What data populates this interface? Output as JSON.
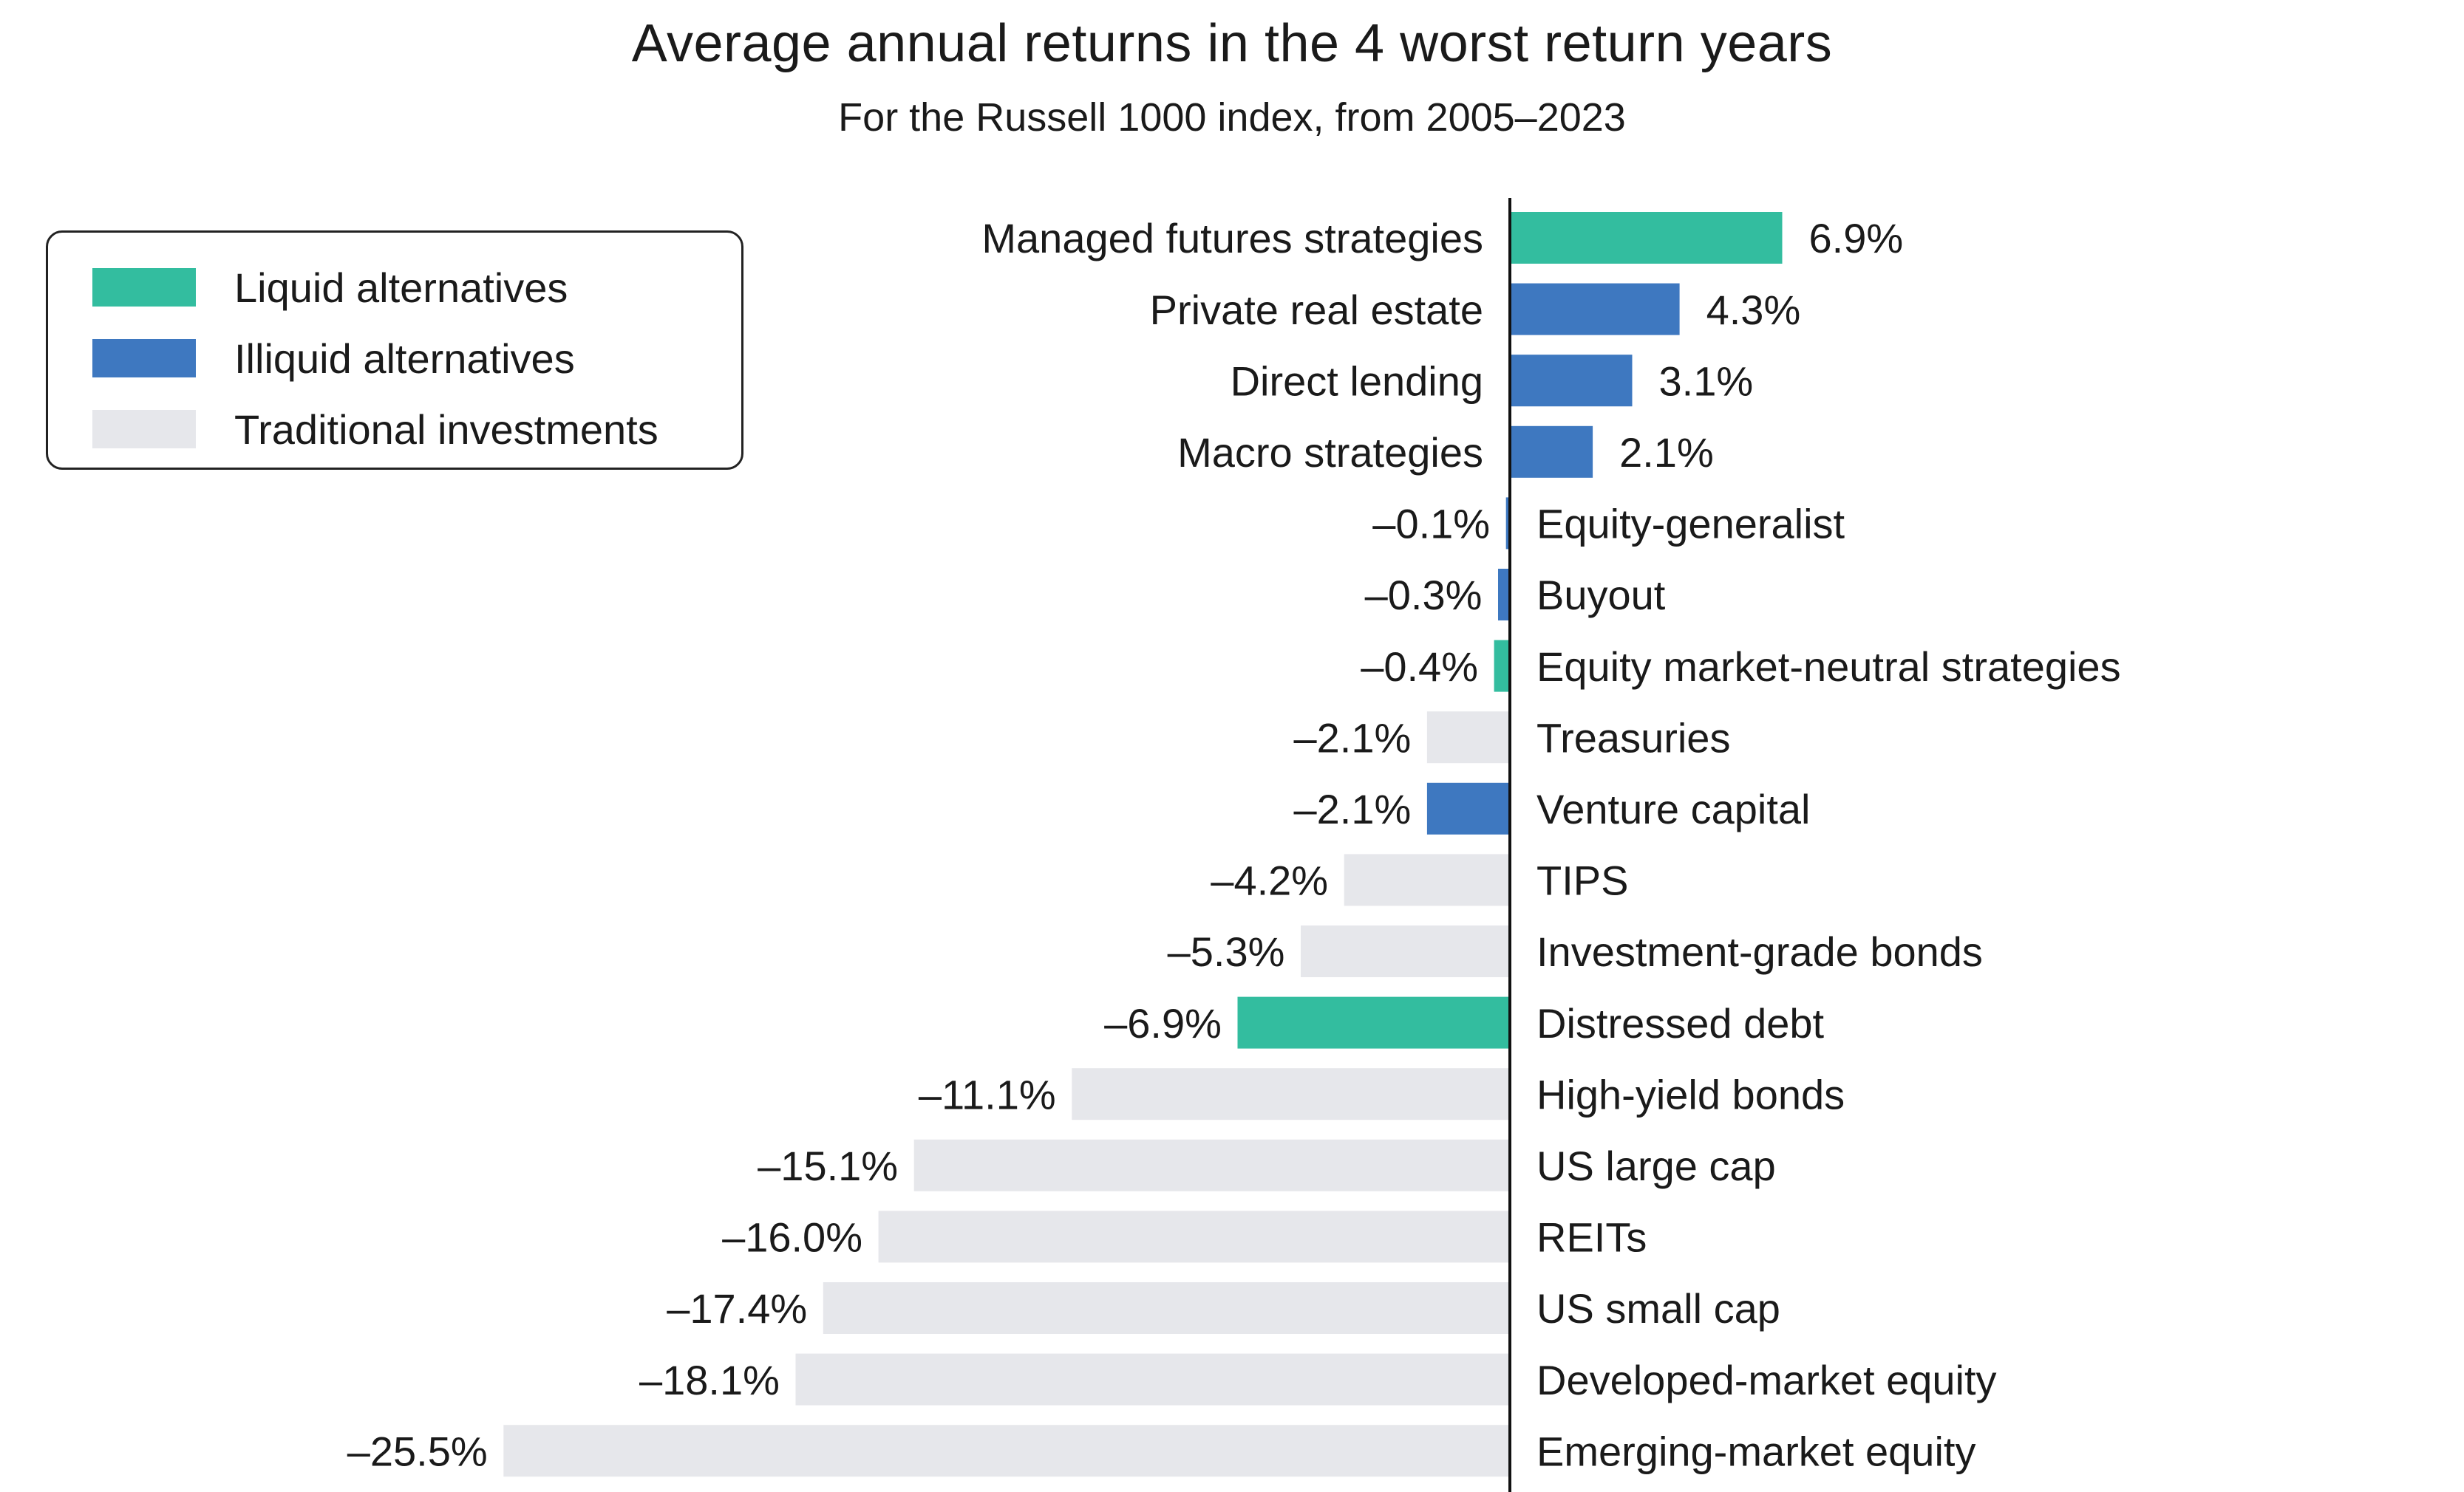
{
  "title": "Average annual returns in the 4 worst return years",
  "subtitle": "For the Russell 1000 index, from 2005–2023",
  "legend": [
    {
      "label": "Liquid alternatives",
      "color": "#33bd9f"
    },
    {
      "label": "Illiquid alternatives",
      "color": "#3e78c0"
    },
    {
      "label": "Traditional investments",
      "color": "#e6e7eb"
    }
  ],
  "chart_data": {
    "type": "bar",
    "orientation": "horizontal",
    "grid": false,
    "legend_position": "top-left",
    "categories": [
      "Managed futures strategies",
      "Private real estate",
      "Direct lending",
      "Macro strategies",
      "Equity-generalist",
      "Buyout",
      "Equity market-neutral strategies",
      "Treasuries",
      "Venture capital",
      "TIPS",
      "Investment-grade bonds",
      "Distressed debt",
      "High-yield bonds",
      "US large cap",
      "REITs",
      "US small cap",
      "Developed-market equity",
      "Emerging-market equity"
    ],
    "values": [
      6.9,
      4.3,
      3.1,
      2.1,
      -0.1,
      -0.3,
      -0.4,
      -2.1,
      -2.1,
      -4.2,
      -5.3,
      -6.9,
      -11.1,
      -15.1,
      -16.0,
      -17.4,
      -18.1,
      -25.5
    ],
    "value_labels": [
      "6.9%",
      "4.3%",
      "3.1%",
      "2.1%",
      "–0.1%",
      "–0.3%",
      "–0.4%",
      "–2.1%",
      "–2.1%",
      "–4.2%",
      "–5.3%",
      "–6.9%",
      "–11.1%",
      "–15.1%",
      "–16.0%",
      "–17.4%",
      "–18.1%",
      "–25.5%"
    ],
    "groups": [
      "Liquid alternatives",
      "Illiquid alternatives",
      "Illiquid alternatives",
      "Illiquid alternatives",
      "Illiquid alternatives",
      "Illiquid alternatives",
      "Liquid alternatives",
      "Traditional investments",
      "Illiquid alternatives",
      "Traditional investments",
      "Traditional investments",
      "Liquid alternatives",
      "Traditional investments",
      "Traditional investments",
      "Traditional investments",
      "Traditional investments",
      "Traditional investments",
      "Traditional investments"
    ],
    "xlim": [
      -25.5,
      6.9
    ]
  }
}
